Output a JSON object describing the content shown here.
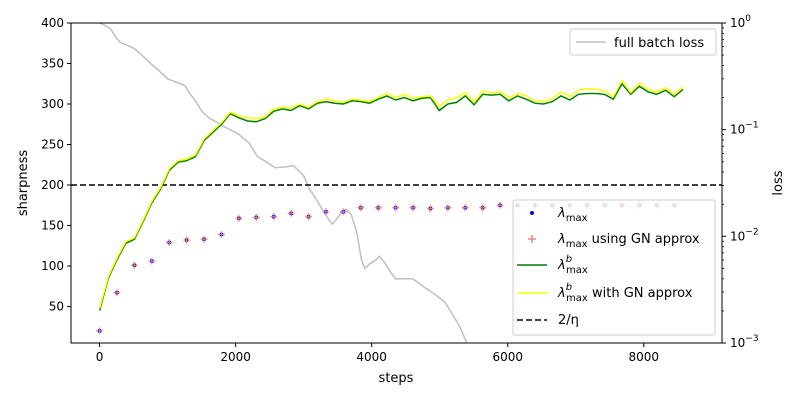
{
  "chart_data": {
    "type": "line",
    "xlabel": "steps",
    "ylabel": "sharpness",
    "y2label": "loss",
    "xlim": [
      -420,
      9150
    ],
    "ylim": [
      5,
      400
    ],
    "y2lim": [
      0.001,
      1
    ],
    "y2scale": "log",
    "xticks": [
      0,
      2000,
      4000,
      6000,
      8000
    ],
    "yticks": [
      50,
      100,
      150,
      200,
      250,
      300,
      350,
      400
    ],
    "y2ticks": [
      {
        "value": 1,
        "label_base": "10",
        "label_exp": "0"
      },
      {
        "value": 0.1,
        "label_base": "10",
        "label_exp": "−1"
      },
      {
        "value": 0.01,
        "label_base": "10",
        "label_exp": "−2"
      },
      {
        "value": 0.001,
        "label_base": "10",
        "label_exp": "−3"
      }
    ],
    "colors": {
      "lambda_max": "#0000ff",
      "lambda_max_gn": "#f08080",
      "lambda_b": "#008000",
      "lambda_b_gn": "#ffff00",
      "threshold": "#000000",
      "loss": "#bfbfbf"
    },
    "threshold_y": 200,
    "legend_top": {
      "position": "top-right",
      "entries": [
        {
          "key": "loss",
          "label": "full batch loss"
        }
      ]
    },
    "legend_bottom": {
      "position": "lower-right",
      "entries": [
        {
          "key": "lambda_max",
          "base": "λ",
          "sub": "max",
          "sup": "",
          "suffix": ""
        },
        {
          "key": "lambda_max_gn",
          "base": "λ",
          "sub": "max",
          "sup": "",
          "suffix": " using GN approx"
        },
        {
          "key": "lambda_b",
          "base": "λ",
          "sub": "max",
          "sup": "b",
          "suffix": ""
        },
        {
          "key": "lambda_b_gn",
          "base": "λ",
          "sub": "max",
          "sup": "b",
          "suffix": " with GN approx"
        },
        {
          "key": "threshold",
          "base": "2/η",
          "sub": "",
          "sup": "",
          "suffix": ""
        }
      ]
    },
    "series_points": {
      "x": [
        0,
        256,
        512,
        768,
        1024,
        1280,
        1536,
        1792,
        2048,
        2304,
        2560,
        2816,
        3072,
        3328,
        3584,
        3840,
        4096,
        4352,
        4608,
        4864,
        5120,
        5376,
        5632,
        5888,
        6144,
        6400,
        6656,
        6912,
        7168,
        7424,
        7680,
        7936,
        8192,
        8448
      ],
      "lambda_max": [
        20,
        67,
        101,
        106,
        129,
        132,
        133,
        139,
        159,
        160,
        161,
        165,
        161,
        167,
        167,
        172,
        172,
        172,
        172,
        171,
        172,
        172,
        172,
        175,
        175,
        175,
        175,
        175,
        175,
        175,
        175,
        175,
        175,
        175
      ],
      "lambda_max_gn": [
        20,
        67,
        101,
        106,
        129,
        132,
        133,
        139,
        159,
        160,
        161,
        165,
        161,
        167,
        167,
        172,
        172,
        172,
        172,
        171,
        172,
        172,
        172,
        175,
        175,
        175,
        175,
        175,
        175,
        175,
        175,
        175,
        175,
        175
      ]
    },
    "series_lambda_b": {
      "x": [
        0,
        128,
        256,
        384,
        512,
        640,
        768,
        896,
        1024,
        1152,
        1280,
        1408,
        1536,
        1664,
        1792,
        1920,
        2048,
        2176,
        2304,
        2432,
        2560,
        2688,
        2816,
        2944,
        3072,
        3200,
        3328,
        3456,
        3584,
        3712,
        3840,
        3968,
        4096,
        4224,
        4352,
        4480,
        4608,
        4736,
        4864,
        4992,
        5120,
        5248,
        5376,
        5504,
        5632,
        5760,
        5888,
        6016,
        6144,
        6272,
        6400,
        6528,
        6656,
        6784,
        6912,
        7040,
        7168,
        7296,
        7424,
        7552,
        7680,
        7808,
        7936,
        8064,
        8192,
        8320,
        8448,
        8576
      ],
      "b": [
        45,
        85,
        108,
        128,
        133,
        155,
        178,
        195,
        218,
        228,
        230,
        235,
        255,
        265,
        275,
        288,
        283,
        279,
        278,
        282,
        291,
        294,
        292,
        298,
        294,
        301,
        303,
        301,
        300,
        304,
        303,
        301,
        306,
        310,
        305,
        308,
        304,
        307,
        308,
        292,
        300,
        302,
        310,
        299,
        312,
        311,
        312,
        304,
        310,
        306,
        301,
        300,
        303,
        310,
        305,
        312,
        313,
        313,
        312,
        306,
        325,
        312,
        322,
        315,
        312,
        317,
        309,
        318
      ],
      "b_gn": [
        48,
        87,
        110,
        130,
        135,
        157,
        180,
        197,
        220,
        230,
        232,
        237,
        257,
        267,
        277,
        290,
        285,
        283,
        282,
        284,
        294,
        296,
        295,
        300,
        296,
        303,
        306,
        304,
        302,
        306,
        305,
        303,
        308,
        313,
        308,
        312,
        307,
        309,
        310,
        297,
        305,
        308,
        314,
        302,
        316,
        314,
        315,
        308,
        313,
        310,
        304,
        303,
        307,
        315,
        309,
        317,
        319,
        318,
        316,
        309,
        329,
        314,
        326,
        318,
        315,
        320,
        312,
        321
      ]
    },
    "series_loss": {
      "x": [
        0,
        80,
        160,
        250,
        300,
        400,
        500,
        580,
        700,
        780,
        850,
        1000,
        1120,
        1250,
        1320,
        1400,
        1500,
        1600,
        1800,
        2050,
        2200,
        2320,
        2450,
        2580,
        2750,
        2850,
        3000,
        3080,
        3170,
        3250,
        3350,
        3420,
        3500,
        3570,
        3620,
        3700,
        3780,
        3850,
        3900,
        3970,
        4060,
        4110,
        4180,
        4260,
        4350,
        4450,
        4600,
        4680,
        4750,
        4850,
        4950,
        5080,
        5180,
        5300,
        5400
      ],
      "loss": [
        1.0,
        0.95,
        0.88,
        0.72,
        0.66,
        0.62,
        0.58,
        0.53,
        0.45,
        0.4,
        0.37,
        0.3,
        0.28,
        0.26,
        0.22,
        0.19,
        0.15,
        0.13,
        0.11,
        0.09,
        0.075,
        0.056,
        0.05,
        0.044,
        0.045,
        0.046,
        0.037,
        0.028,
        0.023,
        0.019,
        0.015,
        0.013,
        0.015,
        0.017,
        0.018,
        0.016,
        0.011,
        0.006,
        0.005,
        0.0055,
        0.006,
        0.0065,
        0.0058,
        0.0048,
        0.004,
        0.004,
        0.004,
        0.0037,
        0.0034,
        0.0031,
        0.0028,
        0.0024,
        0.0019,
        0.0014,
        0.001
      ]
    }
  }
}
